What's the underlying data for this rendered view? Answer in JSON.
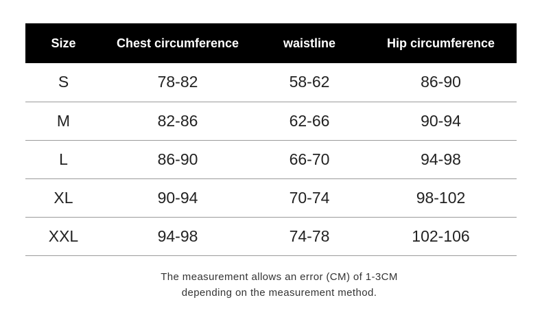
{
  "table": {
    "headers": [
      "Size",
      "Chest circumference",
      "waistline",
      "Hip circumference"
    ],
    "rows": [
      [
        "S",
        "78-82",
        "58-62",
        "86-90"
      ],
      [
        "M",
        "82-86",
        "62-66",
        "90-94"
      ],
      [
        "L",
        "86-90",
        "66-70",
        "94-98"
      ],
      [
        "XL",
        "90-94",
        "70-74",
        "98-102"
      ],
      [
        "XXL",
        "94-98",
        "74-78",
        "102-106"
      ]
    ]
  },
  "note": {
    "line1": "The measurement allows an error (CM) of 1-3CM",
    "line2": "depending on the measurement method."
  },
  "colors": {
    "header_bg": "#000000",
    "header_text": "#ffffff",
    "row_divider": "#9a9a9a",
    "body_text": "#222222"
  }
}
